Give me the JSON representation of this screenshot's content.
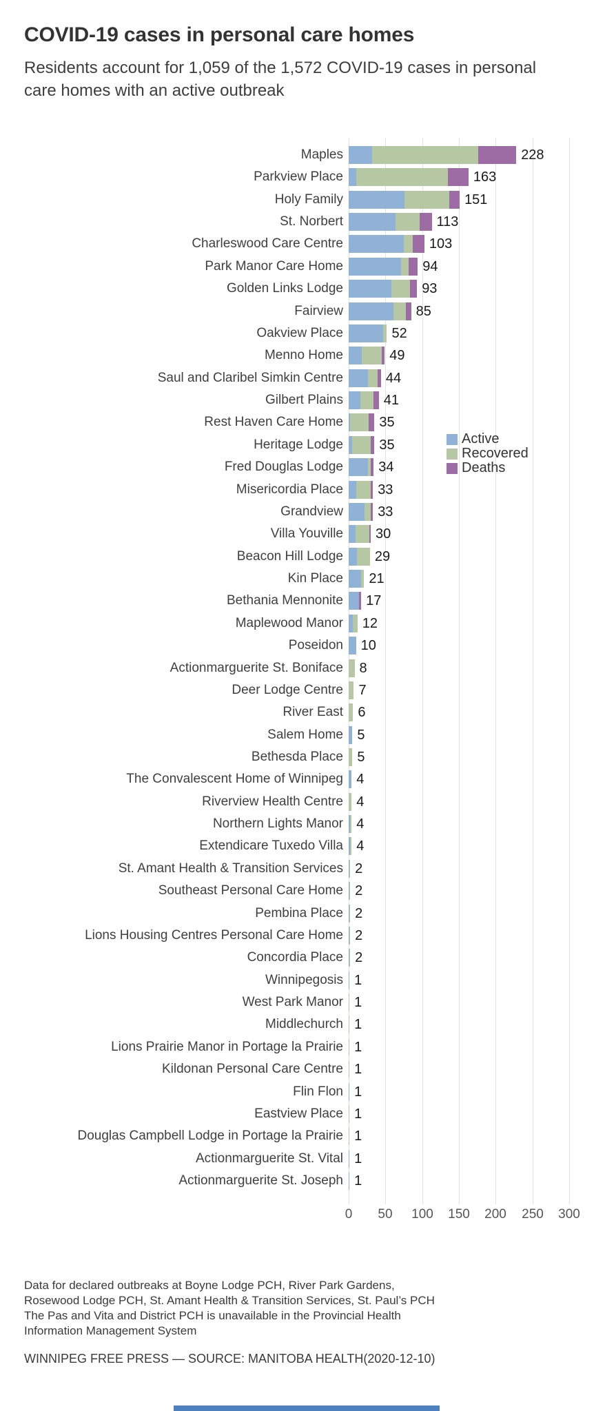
{
  "header": {},
  "chart_data": {
    "type": "bar",
    "orientation": "horizontal",
    "stacked": true,
    "title": "COVID-19 cases in personal care homes",
    "subtitle": "Residents account for 1,059 of the 1,572 COVID-19 cases in personal care homes with an active outbreak",
    "xlabel": "",
    "ylabel": "",
    "xlim": [
      0,
      300
    ],
    "x_ticks": [
      0,
      50,
      100,
      150,
      200,
      250,
      300
    ],
    "grid": "vertical",
    "legend_position": "right-middle",
    "legend": [
      {
        "key": "active",
        "label": "Active"
      },
      {
        "key": "recovered",
        "label": "Recovered"
      },
      {
        "key": "deaths",
        "label": "Deaths"
      }
    ],
    "colors": {
      "active": "#90b2d7",
      "recovered": "#b6c8a3",
      "deaths": "#9e6ca4"
    },
    "rows": [
      {
        "name": "Maples",
        "active": 32,
        "recovered": 144,
        "deaths": 52,
        "total": 228
      },
      {
        "name": "Parkview Place",
        "active": 10,
        "recovered": 125,
        "deaths": 28,
        "total": 163
      },
      {
        "name": "Holy Family",
        "active": 76,
        "recovered": 61,
        "deaths": 14,
        "total": 151
      },
      {
        "name": "St. Norbert",
        "active": 64,
        "recovered": 33,
        "deaths": 16,
        "total": 113
      },
      {
        "name": "Charleswood Care Centre",
        "active": 75,
        "recovered": 12,
        "deaths": 16,
        "total": 103
      },
      {
        "name": "Park Manor Care Home",
        "active": 71,
        "recovered": 11,
        "deaths": 12,
        "total": 94
      },
      {
        "name": "Golden Links Lodge",
        "active": 58,
        "recovered": 25,
        "deaths": 10,
        "total": 93
      },
      {
        "name": "Fairview",
        "active": 61,
        "recovered": 17,
        "deaths": 7,
        "total": 85
      },
      {
        "name": "Oakview Place",
        "active": 47,
        "recovered": 5,
        "deaths": 0,
        "total": 52
      },
      {
        "name": "Menno Home",
        "active": 18,
        "recovered": 27,
        "deaths": 4,
        "total": 49
      },
      {
        "name": "Saul and Claribel Simkin Centre",
        "active": 26,
        "recovered": 13,
        "deaths": 5,
        "total": 44
      },
      {
        "name": "Gilbert Plains",
        "active": 16,
        "recovered": 18,
        "deaths": 7,
        "total": 41
      },
      {
        "name": "Rest Haven Care Home",
        "active": 2,
        "recovered": 25,
        "deaths": 8,
        "total": 35
      },
      {
        "name": "Heritage Lodge",
        "active": 5,
        "recovered": 25,
        "deaths": 5,
        "total": 35
      },
      {
        "name": "Fred Douglas Lodge",
        "active": 26,
        "recovered": 4,
        "deaths": 4,
        "total": 34
      },
      {
        "name": "Misericordia Place",
        "active": 10,
        "recovered": 20,
        "deaths": 3,
        "total": 33
      },
      {
        "name": "Grandview",
        "active": 22,
        "recovered": 8,
        "deaths": 3,
        "total": 33
      },
      {
        "name": "Villa Youville",
        "active": 9,
        "recovered": 19,
        "deaths": 2,
        "total": 30
      },
      {
        "name": "Beacon Hill Lodge",
        "active": 11,
        "recovered": 18,
        "deaths": 0,
        "total": 29
      },
      {
        "name": "Kin Place",
        "active": 17,
        "recovered": 4,
        "deaths": 0,
        "total": 21
      },
      {
        "name": "Bethania Mennonite",
        "active": 14,
        "recovered": 0,
        "deaths": 3,
        "total": 17
      },
      {
        "name": "Maplewood Manor",
        "active": 6,
        "recovered": 6,
        "deaths": 0,
        "total": 12
      },
      {
        "name": "Poseidon",
        "active": 10,
        "recovered": 0,
        "deaths": 0,
        "total": 10
      },
      {
        "name": "Actionmarguerite St. Boniface",
        "active": 0,
        "recovered": 8,
        "deaths": 0,
        "total": 8
      },
      {
        "name": "Deer Lodge Centre",
        "active": 0,
        "recovered": 7,
        "deaths": 0,
        "total": 7
      },
      {
        "name": "River East",
        "active": 0,
        "recovered": 6,
        "deaths": 0,
        "total": 6
      },
      {
        "name": "Salem Home",
        "active": 5,
        "recovered": 0,
        "deaths": 0,
        "total": 5
      },
      {
        "name": "Bethesda Place",
        "active": 0,
        "recovered": 5,
        "deaths": 0,
        "total": 5
      },
      {
        "name": "The Convalescent Home of Winnipeg",
        "active": 4,
        "recovered": 0,
        "deaths": 0,
        "total": 4
      },
      {
        "name": "Riverview Health Centre",
        "active": 0,
        "recovered": 4,
        "deaths": 0,
        "total": 4
      },
      {
        "name": "Northern Lights Manor",
        "active": 2,
        "recovered": 2,
        "deaths": 0,
        "total": 4
      },
      {
        "name": "Extendicare Tuxedo Villa",
        "active": 2,
        "recovered": 2,
        "deaths": 0,
        "total": 4
      },
      {
        "name": "St. Amant Health & Transition Services",
        "active": 1,
        "recovered": 1,
        "deaths": 0,
        "total": 2
      },
      {
        "name": "Southeast Personal Care Home",
        "active": 1,
        "recovered": 1,
        "deaths": 0,
        "total": 2
      },
      {
        "name": "Pembina Place",
        "active": 1,
        "recovered": 1,
        "deaths": 0,
        "total": 2
      },
      {
        "name": "Lions Housing Centres Personal Care Home",
        "active": 1,
        "recovered": 1,
        "deaths": 0,
        "total": 2
      },
      {
        "name": "Concordia Place",
        "active": 1,
        "recovered": 1,
        "deaths": 0,
        "total": 2
      },
      {
        "name": "Winnipegosis",
        "active": 1,
        "recovered": 0,
        "deaths": 0,
        "total": 1
      },
      {
        "name": "West Park Manor",
        "active": 0,
        "recovered": 1,
        "deaths": 0,
        "total": 1
      },
      {
        "name": "Middlechurch",
        "active": 0,
        "recovered": 1,
        "deaths": 0,
        "total": 1
      },
      {
        "name": "Lions Prairie Manor in Portage la Prairie",
        "active": 0,
        "recovered": 1,
        "deaths": 0,
        "total": 1
      },
      {
        "name": "Kildonan Personal Care Centre",
        "active": 0,
        "recovered": 1,
        "deaths": 0,
        "total": 1
      },
      {
        "name": "Flin Flon",
        "active": 1,
        "recovered": 0,
        "deaths": 0,
        "total": 1
      },
      {
        "name": "Eastview Place",
        "active": 0,
        "recovered": 1,
        "deaths": 0,
        "total": 1
      },
      {
        "name": "Douglas Campbell Lodge in Portage la Prairie",
        "active": 0,
        "recovered": 1,
        "deaths": 0,
        "total": 1
      },
      {
        "name": "Actionmarguerite St. Vital",
        "active": 1,
        "recovered": 0,
        "deaths": 0,
        "total": 1
      },
      {
        "name": "Actionmarguerite St. Joseph",
        "active": 1,
        "recovered": 0,
        "deaths": 0,
        "total": 1
      }
    ]
  },
  "footer": {
    "note": "Data for declared outbreaks at Boyne Lodge PCH, River Park Gardens, Rosewood Lodge PCH, St. Amant Health & Transition Services, St. Paul’s PCH The Pas and Vita and District PCH is unavailable in the Provincial Health Information Management System",
    "source": "WINNIPEG FREE PRESS — SOURCE: MANITOBA HEALTH(2020-12-10)"
  },
  "misc": {
    "bottom_strip_color": "#4d80c0"
  }
}
